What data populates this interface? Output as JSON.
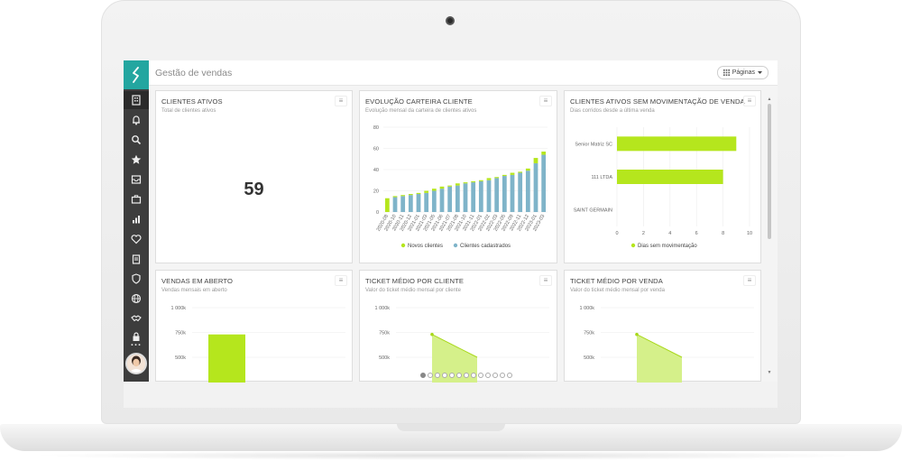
{
  "app": {
    "title": "Gestão de vendas",
    "pages_button": "Páginas"
  },
  "sidebar": {
    "icons": [
      "building-icon",
      "bell-icon",
      "search-icon",
      "star-icon",
      "inbox-icon",
      "briefcase-icon",
      "chart-icon",
      "heart-icon",
      "clipboard-icon",
      "shield-icon",
      "globe-icon",
      "handshake-icon",
      "lock-icon",
      "more-icon"
    ],
    "more_label": "..."
  },
  "widgets": {
    "clientes_ativos": {
      "title": "CLIENTES ATIVOS",
      "subtitle": "Total de clientes ativos",
      "value": "59"
    },
    "evolucao": {
      "title": "EVOLUÇÃO CARTEIRA CLIENTE",
      "subtitle": "Evolução mensal da carteira de clientes ativos"
    },
    "sem_mov": {
      "title": "CLIENTES ATIVOS SEM MOVIMENTAÇÃO DE VENDA",
      "subtitle": "Dias corridos desde a última venda"
    },
    "vendas_aberto": {
      "title": "VENDAS EM ABERTO",
      "subtitle": "Vendas mensais em aberto"
    },
    "ticket_cliente": {
      "title": "TICKET MÉDIO POR CLIENTE",
      "subtitle": "Valor do ticket médio mensal por cliente"
    },
    "ticket_venda": {
      "title": "TICKET MÉDIO POR VENDA",
      "subtitle": "Valor do ticket médio mensal por venda"
    }
  },
  "colors": {
    "green": "#b5e61d",
    "blue": "#7fb4c9",
    "teal": "#23a6a0",
    "sidebar": "#3d3d3d"
  },
  "pager": {
    "count": 13,
    "active": 0
  },
  "chart_data": [
    {
      "id": "evolucao",
      "type": "bar",
      "stacked": true,
      "categories": [
        "2020-08",
        "2020-10",
        "2020-11",
        "2020-12",
        "2021-01",
        "2021-03",
        "2021-05",
        "2021-06",
        "2021-07",
        "2021-08",
        "2021-10",
        "2021-11",
        "2022-01",
        "2022-02",
        "2022-03",
        "2022-05",
        "2022-09",
        "2022-11",
        "2022-12",
        "2023-01",
        "2023-03"
      ],
      "series": [
        {
          "name": "Novos clientes",
          "values": [
            13,
            1,
            1,
            1,
            1,
            2,
            2,
            2,
            1,
            2,
            1,
            1,
            1,
            2,
            1,
            1,
            2,
            1,
            2,
            5,
            3
          ]
        },
        {
          "name": "Clientes cadastrados",
          "values": [
            0,
            14,
            15,
            16,
            17,
            18,
            20,
            22,
            24,
            25,
            27,
            28,
            29,
            30,
            32,
            34,
            35,
            37,
            39,
            46,
            54
          ]
        }
      ],
      "yticks": [
        "0",
        "20",
        "40",
        "60",
        "80"
      ],
      "ylim": [
        0,
        80
      ],
      "legend": "bottom"
    },
    {
      "id": "sem_mov",
      "type": "bar",
      "orientation": "horizontal",
      "categories": [
        "Senior Matriz SC",
        "111 LTDA",
        "SAINT GERMAIN"
      ],
      "series": [
        {
          "name": "Dias sem movimentação",
          "values": [
            9,
            8,
            0
          ]
        }
      ],
      "xticks": [
        "0",
        "2",
        "4",
        "6",
        "8",
        "10"
      ],
      "xlim": [
        0,
        10
      ],
      "legend": "bottom"
    },
    {
      "id": "vendas_aberto",
      "type": "bar",
      "yticks": [
        "1 000k",
        "750k",
        "500k"
      ],
      "ylim": [
        500,
        1000
      ],
      "values": [
        730
      ]
    },
    {
      "id": "ticket_cliente",
      "type": "area",
      "yticks": [
        "1 000k",
        "750k",
        "500k"
      ],
      "ylim": [
        500,
        1000
      ],
      "values": [
        730,
        500
      ]
    },
    {
      "id": "ticket_venda",
      "type": "area",
      "yticks": [
        "1 000k",
        "750k",
        "500k"
      ],
      "ylim": [
        500,
        1000
      ],
      "values": [
        730,
        500
      ]
    }
  ]
}
